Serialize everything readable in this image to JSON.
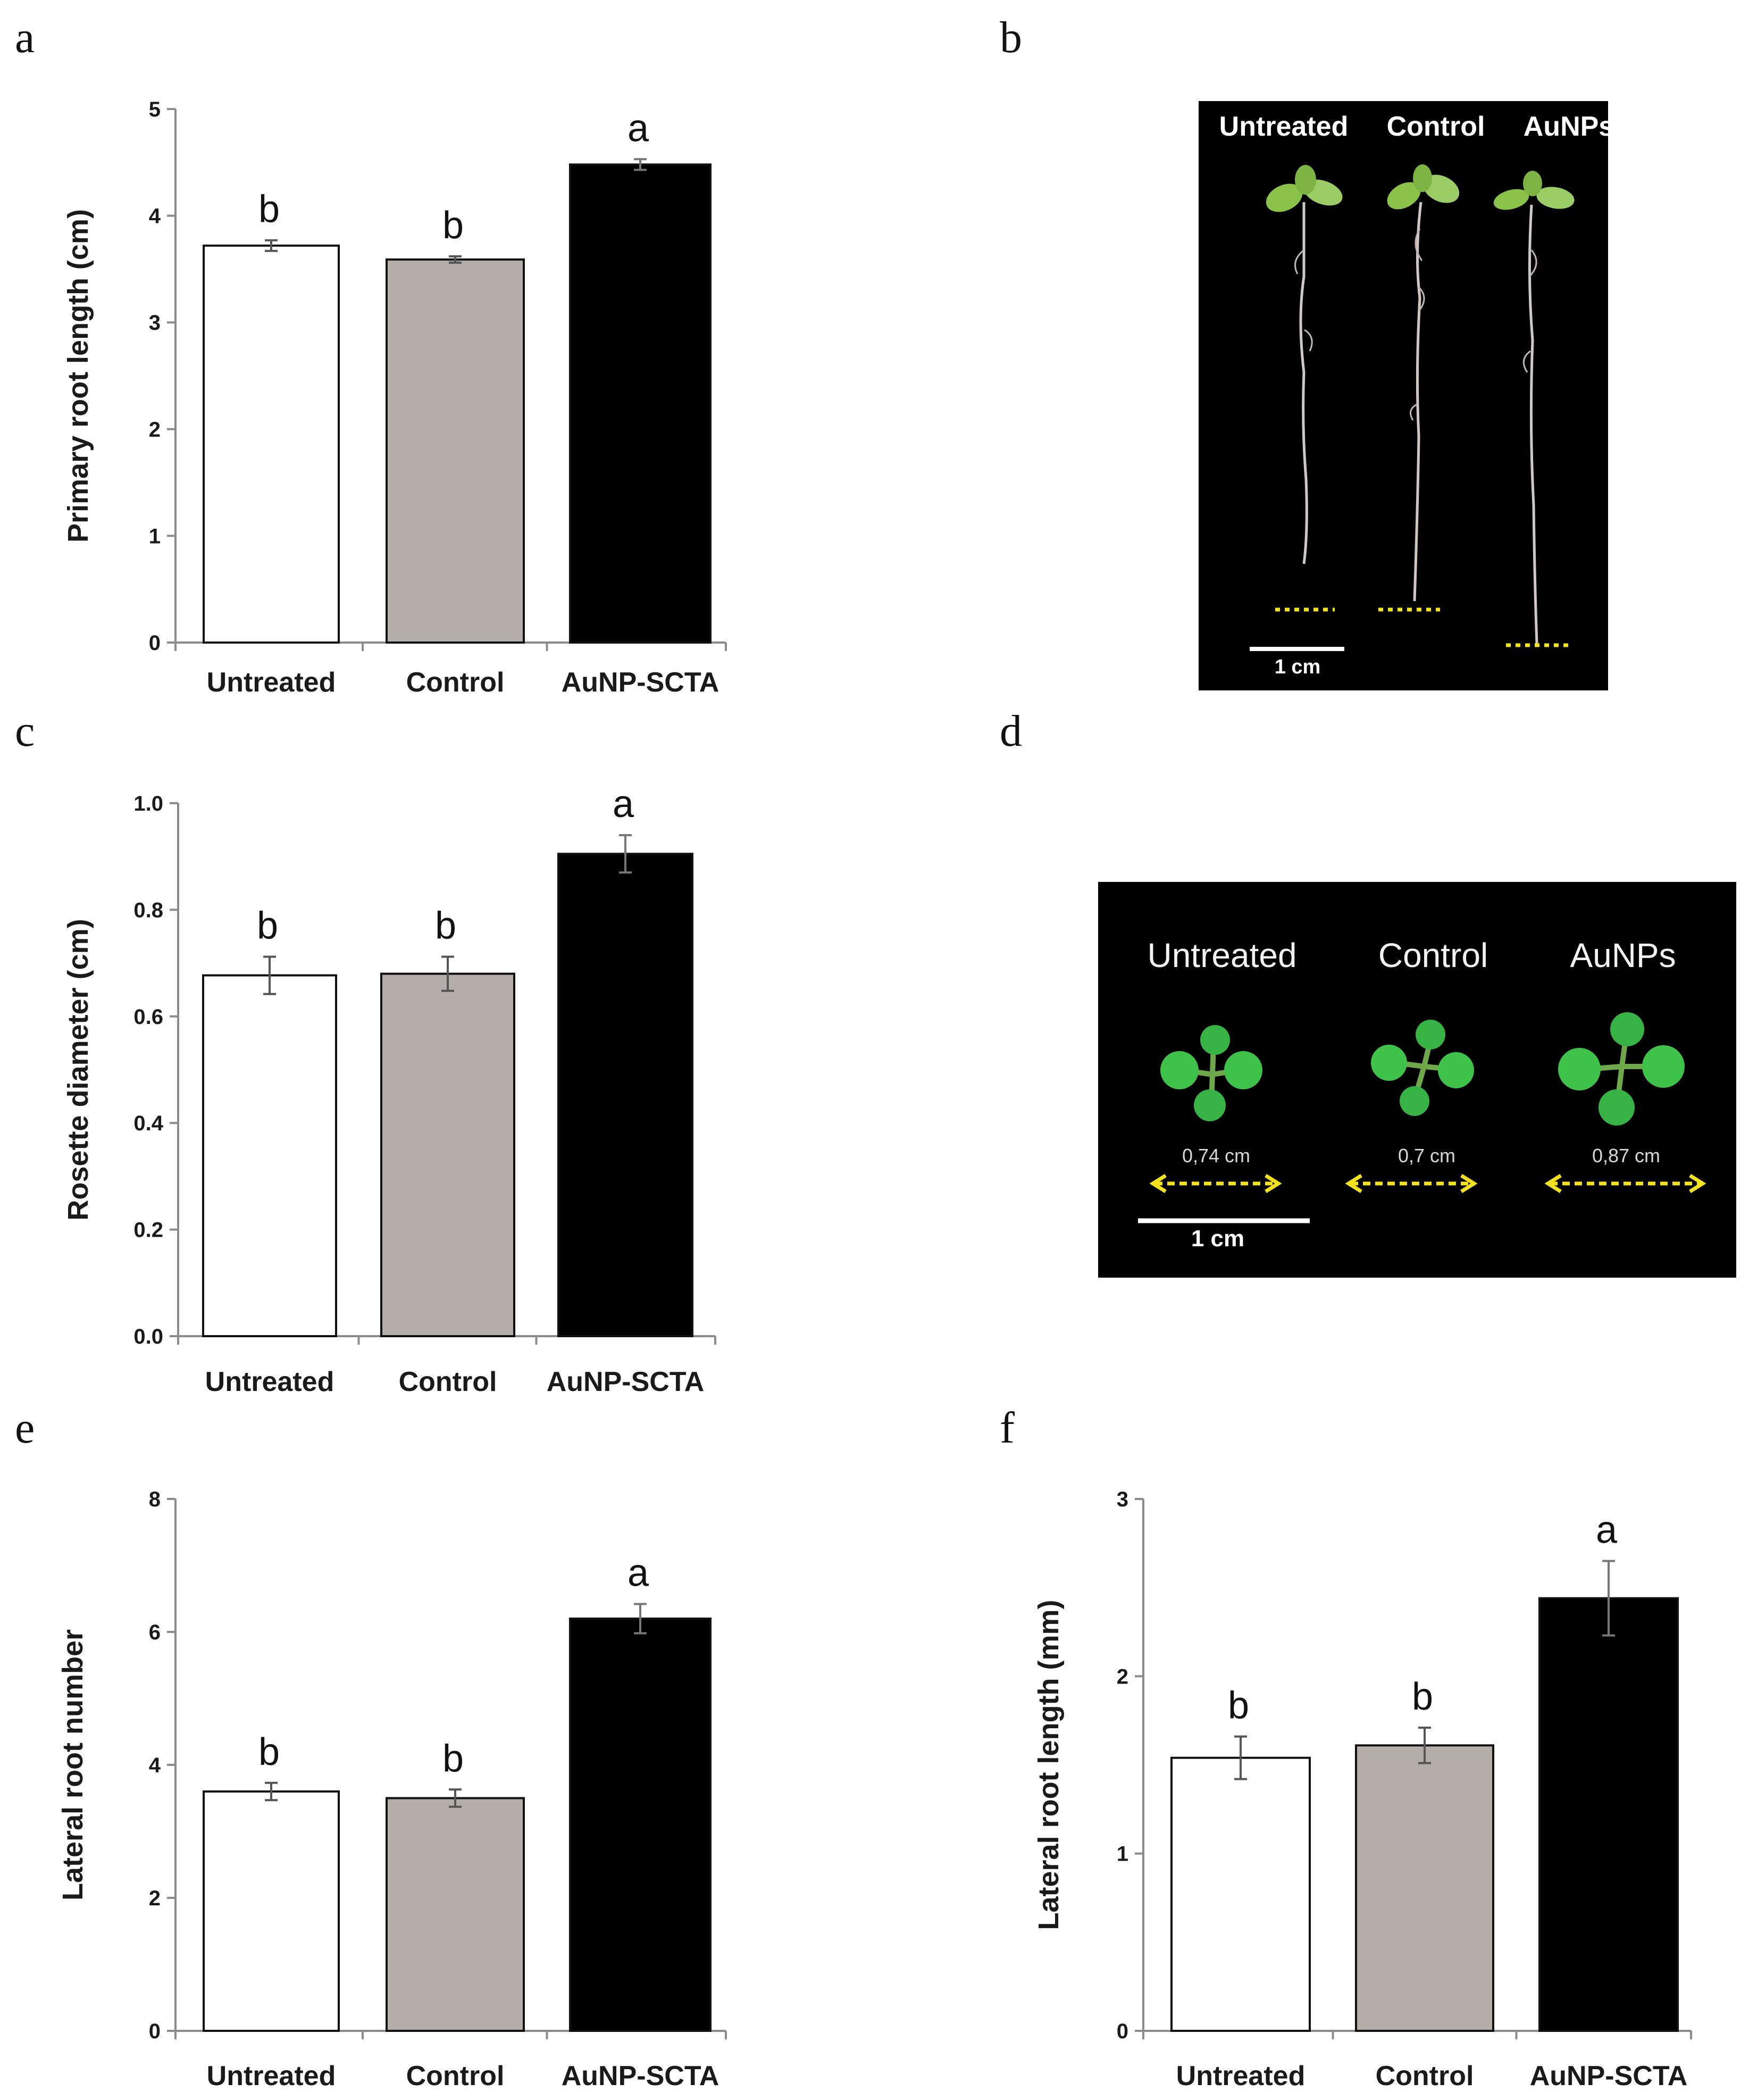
{
  "panels": {
    "a": {
      "letter": "a",
      "chart_data": {
        "type": "bar",
        "categories": [
          "Untreated",
          "Control",
          "AuNP-SCTA"
        ],
        "values": [
          3.72,
          3.59,
          4.48
        ],
        "errors": [
          0.05,
          0.03,
          0.05
        ],
        "significance": [
          "b",
          "b",
          "a"
        ],
        "bar_colors": [
          "#ffffff",
          "#b3aeaa",
          "#000000"
        ],
        "ylabel": "Primary root length (cm)",
        "ylim": [
          0,
          5
        ],
        "yticks": [
          "0",
          "1",
          "2",
          "3",
          "4",
          "5"
        ],
        "grid": false
      }
    },
    "b": {
      "letter": "b",
      "labels": [
        "Untreated",
        "Control",
        "AuNPs"
      ],
      "scale_bar": "1 cm"
    },
    "c": {
      "letter": "c",
      "chart_data": {
        "type": "bar",
        "categories": [
          "Untreated",
          "Control",
          "AuNP-SCTA"
        ],
        "values": [
          0.677,
          0.68,
          0.905
        ],
        "errors": [
          0.035,
          0.032,
          0.035
        ],
        "significance": [
          "b",
          "b",
          "a"
        ],
        "bar_colors": [
          "#ffffff",
          "#b3aeaa",
          "#000000"
        ],
        "ylabel": "Rosette diameter (cm)",
        "ylim": [
          0,
          1.0
        ],
        "yticks": [
          "0.0",
          "0.2",
          "0.4",
          "0.6",
          "0.8",
          "1.0"
        ],
        "grid": false
      }
    },
    "d": {
      "letter": "d",
      "labels": [
        "Untreated",
        "Control",
        "AuNPs"
      ],
      "measurements": [
        "0,74 cm",
        "0,7 cm",
        "0,87 cm"
      ],
      "scale_bar": "1 cm"
    },
    "e": {
      "letter": "e",
      "chart_data": {
        "type": "bar",
        "categories": [
          "Untreated",
          "Control",
          "AuNP-SCTA"
        ],
        "values": [
          3.6,
          3.5,
          6.2
        ],
        "errors": [
          0.13,
          0.13,
          0.22
        ],
        "significance": [
          "b",
          "b",
          "a"
        ],
        "bar_colors": [
          "#ffffff",
          "#b3aeaa",
          "#000000"
        ],
        "ylabel": "Lateral root number",
        "ylim": [
          0,
          8
        ],
        "yticks": [
          "0",
          "2",
          "4",
          "6",
          "8"
        ],
        "grid": false
      }
    },
    "f": {
      "letter": "f",
      "chart_data": {
        "type": "bar",
        "categories": [
          "Untreated",
          "Control",
          "AuNP-SCTA"
        ],
        "values": [
          1.54,
          1.61,
          2.44
        ],
        "errors": [
          0.12,
          0.1,
          0.21
        ],
        "significance": [
          "b",
          "b",
          "a"
        ],
        "bar_colors": [
          "#ffffff",
          "#b3aeaa",
          "#000000"
        ],
        "ylabel": "Lateral root length (mm)",
        "ylim": [
          0,
          3
        ],
        "yticks": [
          "0",
          "1",
          "2",
          "3"
        ],
        "grid": false
      }
    }
  },
  "colors": {
    "photo_background": "#000000",
    "leaf_green": "#3fc24a",
    "measure_arrow": "#f4e21e",
    "root_marker": "#f4e21e"
  }
}
